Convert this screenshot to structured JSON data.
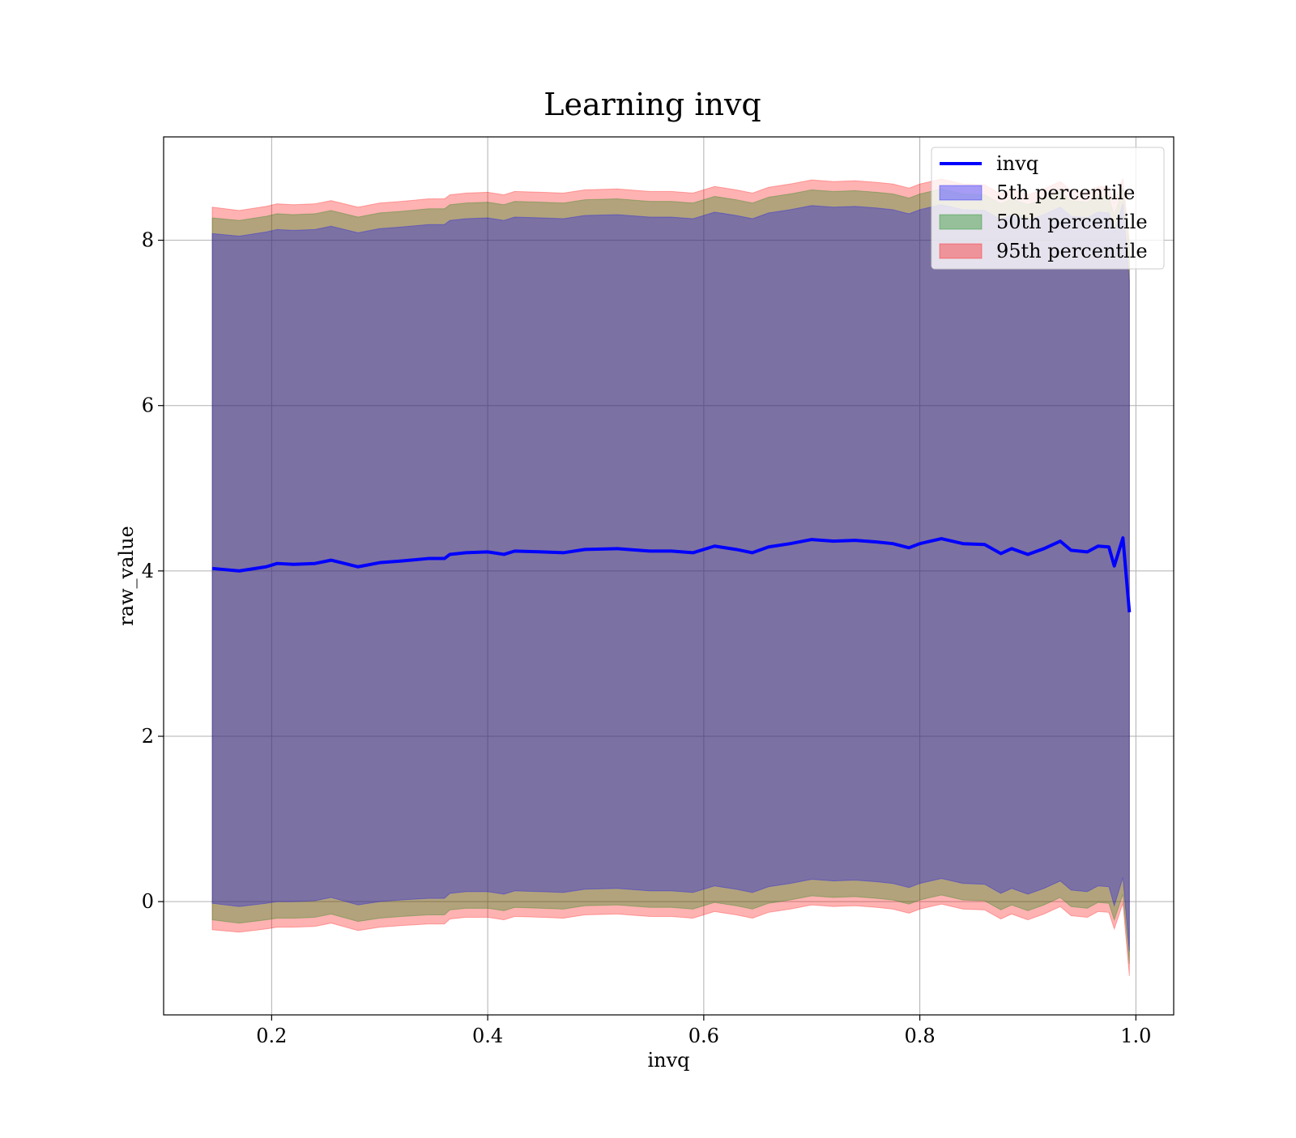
{
  "chart_data": {
    "type": "area",
    "title": "Learning invq",
    "xlabel": "invq",
    "ylabel": "raw_value",
    "xlim": [
      0.1,
      1.035
    ],
    "ylim": [
      -1.37,
      9.25
    ],
    "xticks": [
      0.2,
      0.4,
      0.6,
      0.8,
      1.0
    ],
    "xtick_labels": [
      "0.2",
      "0.4",
      "0.6",
      "0.8",
      "1.0"
    ],
    "yticks": [
      0,
      2,
      4,
      6,
      8
    ],
    "ytick_labels": [
      "0",
      "2",
      "4",
      "6",
      "8"
    ],
    "grid": true,
    "legend_position": "upper right",
    "legend": [
      "invq",
      "5th percentile",
      "50th percentile",
      "95th percentile"
    ],
    "colors": {
      "line": "#0000ff",
      "band_5": "#0000ff",
      "band_50": "#008000",
      "band_95": "#ff0000",
      "grid": "#b0b0b0"
    },
    "x": [
      0.145,
      0.17,
      0.195,
      0.205,
      0.22,
      0.24,
      0.255,
      0.28,
      0.3,
      0.32,
      0.345,
      0.36,
      0.365,
      0.38,
      0.4,
      0.415,
      0.425,
      0.45,
      0.47,
      0.49,
      0.52,
      0.55,
      0.57,
      0.59,
      0.61,
      0.63,
      0.645,
      0.66,
      0.68,
      0.7,
      0.72,
      0.74,
      0.76,
      0.775,
      0.79,
      0.8,
      0.82,
      0.84,
      0.86,
      0.875,
      0.885,
      0.9,
      0.915,
      0.93,
      0.94,
      0.955,
      0.965,
      0.975,
      0.98,
      0.988,
      0.994
    ],
    "series": [
      {
        "name": "invq",
        "values": [
          4.03,
          4.0,
          4.05,
          4.09,
          4.08,
          4.09,
          4.13,
          4.05,
          4.1,
          4.12,
          4.15,
          4.15,
          4.2,
          4.22,
          4.23,
          4.2,
          4.24,
          4.23,
          4.22,
          4.26,
          4.27,
          4.24,
          4.24,
          4.22,
          4.3,
          4.26,
          4.22,
          4.29,
          4.33,
          4.38,
          4.36,
          4.37,
          4.35,
          4.33,
          4.28,
          4.33,
          4.39,
          4.33,
          4.32,
          4.21,
          4.27,
          4.2,
          4.27,
          4.36,
          4.25,
          4.23,
          4.3,
          4.29,
          4.06,
          4.4,
          3.5
        ]
      },
      {
        "name": "5th percentile",
        "lower": [
          -0.02,
          -0.06,
          -0.02,
          0.0,
          0.0,
          0.01,
          0.05,
          -0.04,
          0.0,
          0.02,
          0.04,
          0.04,
          0.1,
          0.12,
          0.12,
          0.09,
          0.13,
          0.12,
          0.11,
          0.15,
          0.16,
          0.13,
          0.13,
          0.11,
          0.19,
          0.15,
          0.11,
          0.18,
          0.22,
          0.27,
          0.25,
          0.26,
          0.24,
          0.22,
          0.17,
          0.22,
          0.28,
          0.22,
          0.21,
          0.1,
          0.16,
          0.09,
          0.16,
          0.25,
          0.14,
          0.12,
          0.19,
          0.18,
          -0.05,
          0.29,
          -0.6
        ],
        "upper": [
          8.08,
          8.05,
          8.1,
          8.13,
          8.12,
          8.13,
          8.17,
          8.09,
          8.14,
          8.16,
          8.19,
          8.19,
          8.24,
          8.26,
          8.27,
          8.24,
          8.28,
          8.27,
          8.26,
          8.3,
          8.31,
          8.28,
          8.28,
          8.26,
          8.34,
          8.3,
          8.26,
          8.33,
          8.37,
          8.42,
          8.4,
          8.41,
          8.39,
          8.37,
          8.32,
          8.37,
          8.43,
          8.37,
          8.36,
          8.25,
          8.31,
          8.24,
          8.31,
          8.4,
          8.29,
          8.27,
          8.34,
          8.33,
          8.1,
          8.44,
          7.5
        ]
      },
      {
        "name": "50th percentile",
        "lower": [
          -0.22,
          -0.26,
          -0.22,
          -0.2,
          -0.2,
          -0.19,
          -0.15,
          -0.24,
          -0.2,
          -0.18,
          -0.16,
          -0.16,
          -0.1,
          -0.08,
          -0.08,
          -0.11,
          -0.07,
          -0.08,
          -0.09,
          -0.05,
          -0.04,
          -0.07,
          -0.07,
          -0.09,
          -0.01,
          -0.05,
          -0.09,
          -0.02,
          0.02,
          0.07,
          0.05,
          0.06,
          0.04,
          0.02,
          -0.03,
          0.02,
          0.08,
          0.02,
          0.01,
          -0.1,
          -0.04,
          -0.11,
          -0.04,
          0.05,
          -0.06,
          -0.08,
          -0.01,
          -0.02,
          -0.22,
          0.09,
          -0.75
        ],
        "upper": [
          8.27,
          8.24,
          8.29,
          8.32,
          8.31,
          8.32,
          8.36,
          8.28,
          8.33,
          8.35,
          8.38,
          8.38,
          8.43,
          8.45,
          8.46,
          8.43,
          8.47,
          8.46,
          8.45,
          8.49,
          8.5,
          8.47,
          8.47,
          8.45,
          8.53,
          8.49,
          8.45,
          8.52,
          8.56,
          8.61,
          8.59,
          8.6,
          8.58,
          8.56,
          8.51,
          8.56,
          8.62,
          8.56,
          8.55,
          8.44,
          8.5,
          8.43,
          8.5,
          8.59,
          8.48,
          8.46,
          8.53,
          8.52,
          8.3,
          8.63,
          7.9
        ]
      },
      {
        "name": "95th percentile",
        "lower": [
          -0.34,
          -0.37,
          -0.33,
          -0.31,
          -0.31,
          -0.3,
          -0.26,
          -0.35,
          -0.31,
          -0.29,
          -0.27,
          -0.27,
          -0.21,
          -0.19,
          -0.19,
          -0.22,
          -0.18,
          -0.19,
          -0.2,
          -0.16,
          -0.15,
          -0.18,
          -0.18,
          -0.2,
          -0.12,
          -0.16,
          -0.2,
          -0.13,
          -0.09,
          -0.04,
          -0.06,
          -0.05,
          -0.07,
          -0.09,
          -0.14,
          -0.09,
          -0.03,
          -0.09,
          -0.1,
          -0.21,
          -0.15,
          -0.22,
          -0.15,
          -0.06,
          -0.17,
          -0.19,
          -0.12,
          -0.13,
          -0.33,
          -0.02,
          -0.9
        ],
        "upper": [
          8.4,
          8.36,
          8.41,
          8.44,
          8.43,
          8.44,
          8.48,
          8.4,
          8.45,
          8.47,
          8.5,
          8.5,
          8.55,
          8.57,
          8.58,
          8.55,
          8.59,
          8.58,
          8.57,
          8.61,
          8.62,
          8.59,
          8.59,
          8.57,
          8.65,
          8.61,
          8.57,
          8.64,
          8.68,
          8.73,
          8.71,
          8.72,
          8.7,
          8.68,
          8.63,
          8.68,
          8.74,
          8.68,
          8.67,
          8.56,
          8.62,
          8.55,
          8.62,
          8.71,
          8.6,
          8.58,
          8.65,
          8.64,
          8.45,
          8.75,
          8.0
        ]
      }
    ]
  }
}
